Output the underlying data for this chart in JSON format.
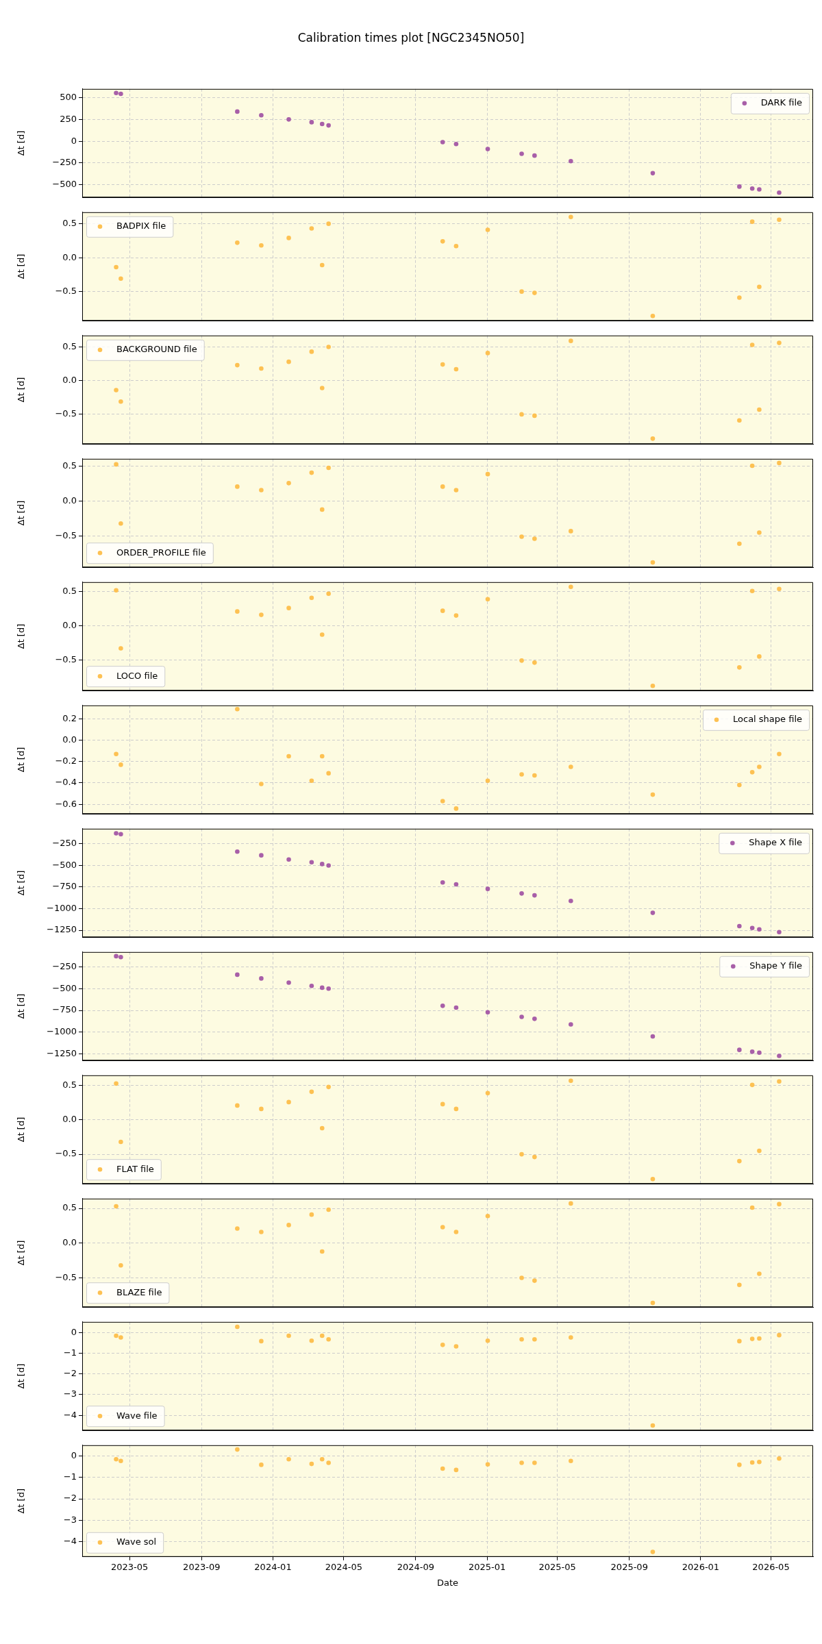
{
  "chart_data": [
    {
      "type": "scatter",
      "title": "Calibration times plot [NGC2345NO50]",
      "ylabel": "Δt [d]",
      "tick_labels": "y",
      "legend": "top right",
      "grid": true,
      "marker": "circle",
      "x": [
        "2023-04-08",
        "2023-04-16",
        "2023-11-01",
        "2023-12-12",
        "2024-01-28",
        "2024-03-07",
        "2024-03-25",
        "2024-04-05",
        "2024-10-17",
        "2024-11-09",
        "2025-01-02",
        "2025-03-01",
        "2025-03-23",
        "2025-05-24",
        "2025-10-11",
        "2026-03-08",
        "2026-03-30",
        "2026-04-11",
        "2026-05-15"
      ],
      "xlim": [
        "2023-02-09",
        "2026-07-12"
      ],
      "xticks": [
        "2023-05",
        "2023-09",
        "2024-01",
        "2024-05",
        "2024-09",
        "2025-01",
        "2025-05",
        "2025-09",
        "2026-01",
        "2026-05"
      ],
      "ylim": [
        -645,
        600
      ],
      "yticks": [
        {
          "value": -500,
          "label": "−500"
        },
        {
          "value": -250,
          "label": "−250"
        },
        0,
        250,
        500
      ],
      "series": [
        {
          "name": "DARK file",
          "color": "#a85fa8",
          "values": [
            553,
            543,
            340,
            298,
            250,
            218,
            197,
            181,
            -11,
            -32,
            -90,
            -144,
            -165,
            -229,
            -367,
            -521,
            -543,
            -553,
            -590
          ]
        }
      ]
    },
    {
      "type": "scatter",
      "ylabel": "Δt [d]",
      "tick_labels": "y",
      "legend": "top left",
      "grid": true,
      "marker": "circle",
      "x": [
        "2023-04-08",
        "2023-04-16",
        "2023-11-01",
        "2023-12-12",
        "2024-01-28",
        "2024-03-07",
        "2024-03-25",
        "2024-04-05",
        "2024-10-17",
        "2024-11-09",
        "2025-01-02",
        "2025-03-01",
        "2025-03-23",
        "2025-05-24",
        "2025-10-11",
        "2026-03-08",
        "2026-03-30",
        "2026-04-11",
        "2026-05-15"
      ],
      "xlim": [
        "2023-02-09",
        "2026-07-12"
      ],
      "xticks": [
        "2023-05",
        "2023-09",
        "2024-01",
        "2024-05",
        "2024-09",
        "2025-01",
        "2025-05",
        "2025-09",
        "2026-01",
        "2026-05"
      ],
      "ylim": [
        -0.93,
        0.67
      ],
      "yticks": [
        {
          "value": -0.5,
          "label": "−0.5"
        },
        {
          "value": 0,
          "label": "0.0"
        },
        0.5
      ],
      "series": [
        {
          "name": "BADPIX file",
          "color": "#fdc152",
          "values": [
            -0.14,
            -0.31,
            0.22,
            0.18,
            0.29,
            0.43,
            -0.11,
            0.5,
            0.24,
            0.17,
            0.41,
            -0.5,
            -0.52,
            0.6,
            -0.86,
            -0.59,
            0.53,
            -0.43,
            0.56
          ]
        }
      ]
    },
    {
      "type": "scatter",
      "ylabel": "Δt [d]",
      "tick_labels": "y",
      "legend": "top left",
      "grid": true,
      "marker": "circle",
      "x": [
        "2023-04-08",
        "2023-04-16",
        "2023-11-01",
        "2023-12-12",
        "2024-01-28",
        "2024-03-07",
        "2024-03-25",
        "2024-04-05",
        "2024-10-17",
        "2024-11-09",
        "2025-01-02",
        "2025-03-01",
        "2025-03-23",
        "2025-05-24",
        "2025-10-11",
        "2026-03-08",
        "2026-03-30",
        "2026-04-11",
        "2026-05-15"
      ],
      "xlim": [
        "2023-02-09",
        "2026-07-12"
      ],
      "xticks": [
        "2023-05",
        "2023-09",
        "2024-01",
        "2024-05",
        "2024-09",
        "2025-01",
        "2025-05",
        "2025-09",
        "2026-01",
        "2026-05"
      ],
      "ylim": [
        -0.94,
        0.67
      ],
      "yticks": [
        {
          "value": -0.5,
          "label": "−0.5"
        },
        {
          "value": 0,
          "label": "0.0"
        },
        0.5
      ],
      "series": [
        {
          "name": "BACKGROUND file",
          "color": "#fdc152",
          "values": [
            -0.14,
            -0.31,
            0.23,
            0.18,
            0.28,
            0.43,
            -0.11,
            0.5,
            0.24,
            0.17,
            0.41,
            -0.5,
            -0.52,
            0.59,
            -0.86,
            -0.59,
            0.53,
            -0.43,
            0.56
          ]
        }
      ]
    },
    {
      "type": "scatter",
      "ylabel": "Δt [d]",
      "tick_labels": "y",
      "legend": "bottom left",
      "grid": true,
      "marker": "circle",
      "x": [
        "2023-04-08",
        "2023-04-16",
        "2023-11-01",
        "2023-12-12",
        "2024-01-28",
        "2024-03-07",
        "2024-03-25",
        "2024-04-05",
        "2024-10-17",
        "2024-11-09",
        "2025-01-02",
        "2025-03-01",
        "2025-03-23",
        "2025-05-24",
        "2025-10-11",
        "2026-03-08",
        "2026-03-30",
        "2026-04-11",
        "2026-05-15"
      ],
      "xlim": [
        "2023-02-09",
        "2026-07-12"
      ],
      "xticks": [
        "2023-05",
        "2023-09",
        "2024-01",
        "2024-05",
        "2024-09",
        "2025-01",
        "2025-05",
        "2025-09",
        "2026-01",
        "2026-05"
      ],
      "ylim": [
        -0.95,
        0.61
      ],
      "yticks": [
        {
          "value": -0.5,
          "label": "−0.5"
        },
        {
          "value": 0,
          "label": "0.0"
        },
        0.5
      ],
      "series": [
        {
          "name": "ORDER_PROFILE file",
          "color": "#fdc152",
          "values": [
            0.53,
            -0.32,
            0.21,
            0.16,
            0.26,
            0.41,
            -0.12,
            0.48,
            0.21,
            0.16,
            0.39,
            -0.51,
            -0.54,
            -0.43,
            -0.88,
            -0.61,
            0.51,
            -0.45,
            0.55
          ]
        }
      ]
    },
    {
      "type": "scatter",
      "ylabel": "Δt [d]",
      "tick_labels": "y",
      "legend": "bottom left",
      "grid": true,
      "marker": "circle",
      "x": [
        "2023-04-08",
        "2023-04-16",
        "2023-11-01",
        "2023-12-12",
        "2024-01-28",
        "2024-03-07",
        "2024-03-25",
        "2024-04-05",
        "2024-10-17",
        "2024-11-09",
        "2025-01-02",
        "2025-03-01",
        "2025-03-23",
        "2025-05-24",
        "2025-10-11",
        "2026-03-08",
        "2026-03-30",
        "2026-04-11",
        "2026-05-15"
      ],
      "xlim": [
        "2023-02-09",
        "2026-07-12"
      ],
      "xticks": [
        "2023-05",
        "2023-09",
        "2024-01",
        "2024-05",
        "2024-09",
        "2025-01",
        "2025-05",
        "2025-09",
        "2026-01",
        "2026-05"
      ],
      "ylim": [
        -0.95,
        0.64
      ],
      "yticks": [
        {
          "value": -0.5,
          "label": "−0.5"
        },
        {
          "value": 0,
          "label": "0.0"
        },
        0.5
      ],
      "series": [
        {
          "name": "LOCO file",
          "color": "#fdc152",
          "values": [
            0.52,
            -0.33,
            0.21,
            0.16,
            0.26,
            0.41,
            -0.13,
            0.47,
            0.22,
            0.15,
            0.39,
            -0.51,
            -0.54,
            0.57,
            -0.88,
            -0.61,
            0.51,
            -0.45,
            0.54
          ]
        }
      ]
    },
    {
      "type": "scatter",
      "ylabel": "Δt [d]",
      "tick_labels": "y",
      "legend": "top right",
      "grid": true,
      "marker": "circle",
      "x": [
        "2023-04-08",
        "2023-04-16",
        "2023-11-01",
        "2023-12-12",
        "2024-01-28",
        "2024-03-07",
        "2024-03-25",
        "2024-04-05",
        "2024-10-17",
        "2024-11-09",
        "2025-01-02",
        "2025-03-01",
        "2025-03-23",
        "2025-05-24",
        "2025-10-11",
        "2026-03-08",
        "2026-03-30",
        "2026-04-11",
        "2026-05-15"
      ],
      "xlim": [
        "2023-02-09",
        "2026-07-12"
      ],
      "xticks": [
        "2023-05",
        "2023-09",
        "2024-01",
        "2024-05",
        "2024-09",
        "2025-01",
        "2025-05",
        "2025-09",
        "2026-01",
        "2026-05"
      ],
      "ylim": [
        -0.69,
        0.325
      ],
      "yticks": [
        {
          "value": -0.6,
          "label": "−0.6"
        },
        {
          "value": -0.4,
          "label": "−0.4"
        },
        {
          "value": -0.2,
          "label": "−0.2"
        },
        {
          "value": 0,
          "label": "0.0"
        },
        0.2
      ],
      "series": [
        {
          "name": "Local shape file",
          "color": "#fdc152",
          "values": [
            -0.13,
            -0.23,
            0.29,
            -0.41,
            -0.15,
            -0.38,
            -0.15,
            -0.31,
            -0.57,
            -0.64,
            -0.38,
            -0.32,
            -0.33,
            -0.25,
            -0.51,
            -0.42,
            -0.3,
            -0.25,
            -0.13
          ]
        }
      ]
    },
    {
      "type": "scatter",
      "ylabel": "Δt [d]",
      "tick_labels": "y",
      "legend": "top right",
      "grid": true,
      "marker": "circle",
      "x": [
        "2023-04-08",
        "2023-04-16",
        "2023-11-01",
        "2023-12-12",
        "2024-01-28",
        "2024-03-07",
        "2024-03-25",
        "2024-04-05",
        "2024-10-17",
        "2024-11-09",
        "2025-01-02",
        "2025-03-01",
        "2025-03-23",
        "2025-05-24",
        "2025-10-11",
        "2026-03-08",
        "2026-03-30",
        "2026-04-11",
        "2026-05-15"
      ],
      "xlim": [
        "2023-02-09",
        "2026-07-12"
      ],
      "xticks": [
        "2023-05",
        "2023-09",
        "2024-01",
        "2024-05",
        "2024-09",
        "2025-01",
        "2025-05",
        "2025-09",
        "2026-01",
        "2026-05"
      ],
      "ylim": [
        -1330,
        -75
      ],
      "yticks": [
        {
          "value": -1250,
          "label": "−1250"
        },
        {
          "value": -1000,
          "label": "−1000"
        },
        {
          "value": -750,
          "label": "−750"
        },
        {
          "value": -500,
          "label": "−500"
        },
        {
          "value": -250,
          "label": "−250"
        }
      ],
      "series": [
        {
          "name": "Shape X file",
          "color": "#a85fa8",
          "values": [
            -128,
            -138,
            -340,
            -383,
            -431,
            -463,
            -484,
            -500,
            -697,
            -718,
            -771,
            -824,
            -846,
            -910,
            -1048,
            -1202,
            -1223,
            -1239,
            -1271
          ]
        }
      ]
    },
    {
      "type": "scatter",
      "ylabel": "Δt [d]",
      "tick_labels": "y",
      "legend": "top right",
      "grid": true,
      "marker": "circle",
      "x": [
        "2023-04-08",
        "2023-04-16",
        "2023-11-01",
        "2023-12-12",
        "2024-01-28",
        "2024-03-07",
        "2024-03-25",
        "2024-04-05",
        "2024-10-17",
        "2024-11-09",
        "2025-01-02",
        "2025-03-01",
        "2025-03-23",
        "2025-05-24",
        "2025-10-11",
        "2026-03-08",
        "2026-03-30",
        "2026-04-11",
        "2026-05-15"
      ],
      "xlim": [
        "2023-02-09",
        "2026-07-12"
      ],
      "xticks": [
        "2023-05",
        "2023-09",
        "2024-01",
        "2024-05",
        "2024-09",
        "2025-01",
        "2025-05",
        "2025-09",
        "2026-01",
        "2026-05"
      ],
      "ylim": [
        -1324,
        -80
      ],
      "yticks": [
        {
          "value": -1250,
          "label": "−1250"
        },
        {
          "value": -1000,
          "label": "−1000"
        },
        {
          "value": -750,
          "label": "−750"
        },
        {
          "value": -500,
          "label": "−500"
        },
        {
          "value": -250,
          "label": "−250"
        }
      ],
      "series": [
        {
          "name": "Shape Y file",
          "color": "#a85fa8",
          "values": [
            -128,
            -138,
            -340,
            -383,
            -431,
            -468,
            -489,
            -500,
            -697,
            -718,
            -771,
            -824,
            -846,
            -910,
            -1048,
            -1202,
            -1223,
            -1234,
            -1271
          ]
        }
      ]
    },
    {
      "type": "scatter",
      "ylabel": "Δt [d]",
      "tick_labels": "y",
      "legend": "bottom left",
      "grid": true,
      "marker": "circle",
      "x": [
        "2023-04-08",
        "2023-04-16",
        "2023-11-01",
        "2023-12-12",
        "2024-01-28",
        "2024-03-07",
        "2024-03-25",
        "2024-04-05",
        "2024-10-17",
        "2024-11-09",
        "2025-01-02",
        "2025-03-01",
        "2025-03-23",
        "2025-05-24",
        "2025-10-11",
        "2026-03-08",
        "2026-03-30",
        "2026-04-11",
        "2026-05-15"
      ],
      "xlim": [
        "2023-02-09",
        "2026-07-12"
      ],
      "xticks": [
        "2023-05",
        "2023-09",
        "2024-01",
        "2024-05",
        "2024-09",
        "2025-01",
        "2025-05",
        "2025-09",
        "2026-01",
        "2026-05"
      ],
      "ylim": [
        -0.93,
        0.65
      ],
      "yticks": [
        {
          "value": -0.5,
          "label": "−0.5"
        },
        {
          "value": 0,
          "label": "0.0"
        },
        0.5
      ],
      "series": [
        {
          "name": "FLAT file",
          "color": "#fdc152",
          "values": [
            0.53,
            -0.32,
            0.21,
            0.16,
            0.26,
            0.41,
            -0.12,
            0.48,
            0.23,
            0.16,
            0.39,
            -0.5,
            -0.54,
            0.57,
            -0.86,
            -0.6,
            0.51,
            -0.45,
            0.56
          ]
        }
      ]
    },
    {
      "type": "scatter",
      "ylabel": "Δt [d]",
      "tick_labels": "y",
      "legend": "bottom left",
      "grid": true,
      "marker": "circle",
      "x": [
        "2023-04-08",
        "2023-04-16",
        "2023-11-01",
        "2023-12-12",
        "2024-01-28",
        "2024-03-07",
        "2024-03-25",
        "2024-04-05",
        "2024-10-17",
        "2024-11-09",
        "2025-01-02",
        "2025-03-01",
        "2025-03-23",
        "2025-05-24",
        "2025-10-11",
        "2026-03-08",
        "2026-03-30",
        "2026-04-11",
        "2026-05-15"
      ],
      "xlim": [
        "2023-02-09",
        "2026-07-12"
      ],
      "xticks": [
        "2023-05",
        "2023-09",
        "2024-01",
        "2024-05",
        "2024-09",
        "2025-01",
        "2025-05",
        "2025-09",
        "2026-01",
        "2026-05"
      ],
      "ylim": [
        -0.92,
        0.64
      ],
      "yticks": [
        {
          "value": -0.5,
          "label": "−0.5"
        },
        {
          "value": 0,
          "label": "0.0"
        },
        0.5
      ],
      "series": [
        {
          "name": "BLAZE file",
          "color": "#fdc152",
          "values": [
            0.53,
            -0.32,
            0.21,
            0.16,
            0.26,
            0.41,
            -0.12,
            0.48,
            0.23,
            0.16,
            0.39,
            -0.5,
            -0.54,
            0.57,
            -0.86,
            -0.6,
            0.51,
            -0.44,
            0.56
          ]
        }
      ]
    },
    {
      "type": "scatter",
      "ylabel": "Δt [d]",
      "tick_labels": "y",
      "legend": "bottom left",
      "grid": true,
      "marker": "circle",
      "x": [
        "2023-04-08",
        "2023-04-16",
        "2023-11-01",
        "2023-12-12",
        "2024-01-28",
        "2024-03-07",
        "2024-03-25",
        "2024-04-05",
        "2024-10-17",
        "2024-11-09",
        "2025-01-02",
        "2025-03-01",
        "2025-03-23",
        "2025-05-24",
        "2025-10-11",
        "2026-03-08",
        "2026-03-30",
        "2026-04-11",
        "2026-05-15"
      ],
      "xlim": [
        "2023-02-09",
        "2026-07-12"
      ],
      "xticks": [
        "2023-05",
        "2023-09",
        "2024-01",
        "2024-05",
        "2024-09",
        "2025-01",
        "2025-05",
        "2025-09",
        "2026-01",
        "2026-05"
      ],
      "ylim": [
        -4.73,
        0.51
      ],
      "yticks": [
        {
          "value": -4,
          "label": "−4"
        },
        {
          "value": -3,
          "label": "−3"
        },
        {
          "value": -2,
          "label": "−2"
        },
        {
          "value": -1,
          "label": "−1"
        },
        0
      ],
      "series": [
        {
          "name": "Wave file",
          "color": "#fdc152",
          "values": [
            -0.16,
            -0.24,
            0.27,
            -0.42,
            -0.16,
            -0.4,
            -0.16,
            -0.33,
            -0.6,
            -0.67,
            -0.4,
            -0.33,
            -0.33,
            -0.24,
            -4.49,
            -0.42,
            -0.31,
            -0.29,
            -0.13
          ]
        }
      ]
    },
    {
      "type": "scatter",
      "xlabel": "Date",
      "ylabel": "Δt [d]",
      "legend": "bottom left",
      "grid": true,
      "marker": "circle",
      "x": [
        "2023-04-08",
        "2023-04-16",
        "2023-11-01",
        "2023-12-12",
        "2024-01-28",
        "2024-03-07",
        "2024-03-25",
        "2024-04-05",
        "2024-10-17",
        "2024-11-09",
        "2025-01-02",
        "2025-03-01",
        "2025-03-23",
        "2025-05-24",
        "2025-10-11",
        "2026-03-08",
        "2026-03-30",
        "2026-04-11",
        "2026-05-15"
      ],
      "xlim": [
        "2023-02-09",
        "2026-07-12"
      ],
      "xticks": [
        "2023-05",
        "2023-09",
        "2024-01",
        "2024-05",
        "2024-09",
        "2025-01",
        "2025-05",
        "2025-09",
        "2026-01",
        "2026-05"
      ],
      "ylim": [
        -4.7,
        0.49
      ],
      "yticks": [
        {
          "value": -4,
          "label": "−4"
        },
        {
          "value": -3,
          "label": "−3"
        },
        {
          "value": -2,
          "label": "−2"
        },
        {
          "value": -1,
          "label": "−1"
        },
        0
      ],
      "series": [
        {
          "name": "Wave sol",
          "color": "#fdc152",
          "values": [
            -0.16,
            -0.24,
            0.29,
            -0.42,
            -0.16,
            -0.38,
            -0.16,
            -0.33,
            -0.6,
            -0.66,
            -0.4,
            -0.33,
            -0.33,
            -0.24,
            -4.47,
            -0.42,
            -0.31,
            -0.29,
            -0.13
          ]
        }
      ]
    }
  ]
}
